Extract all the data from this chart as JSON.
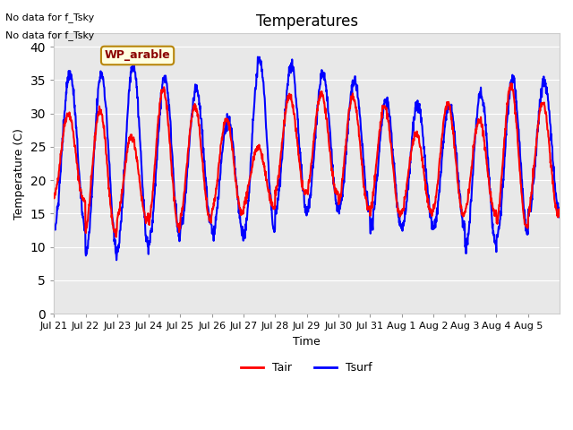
{
  "title": "Temperatures",
  "xlabel": "Time",
  "ylabel": "Temperature (C)",
  "text_no_data_1": "No data for f_Tsky",
  "text_no_data_2": "No data for f_Tsky",
  "wp_label": "WP_arable",
  "legend_entries": [
    "Tair",
    "Tsurf"
  ],
  "ylim": [
    0,
    42
  ],
  "yticks": [
    0,
    5,
    10,
    15,
    20,
    25,
    30,
    35,
    40
  ],
  "x_tick_labels": [
    "Jul 21",
    "Jul 22",
    "Jul 23",
    "Jul 24",
    "Jul 25",
    "Jul 26",
    "Jul 27",
    "Jul 28",
    "Jul 29",
    "Jul 30",
    "Jul 31",
    "Aug 1",
    "Aug 2",
    "Aug 3",
    "Aug 4",
    "Aug 5"
  ],
  "background_color": "#e8e8e8",
  "tair_color": "red",
  "tsurf_color": "blue",
  "tair_linewidth": 1.5,
  "tsurf_linewidth": 1.5,
  "num_days": 16,
  "tair_peaks": [
    30,
    30.5,
    26.5,
    33.5,
    31,
    29,
    25,
    32.5,
    33,
    32.5,
    31,
    27,
    31.5,
    29,
    34,
    31.5
  ],
  "tair_troughs": [
    17,
    12,
    14,
    13,
    14,
    15,
    16,
    18,
    18,
    16,
    15,
    15,
    15,
    15,
    13,
    15
  ],
  "tsurf_peaks": [
    36,
    36,
    37.5,
    35.5,
    33.5,
    29,
    38,
    37,
    36,
    35,
    32,
    31.5,
    31.5,
    33,
    35,
    35
  ],
  "tsurf_troughs": [
    13,
    9,
    10,
    11,
    13,
    12,
    12,
    15.5,
    15.5,
    15.5,
    13,
    13,
    13,
    10,
    12,
    15
  ]
}
